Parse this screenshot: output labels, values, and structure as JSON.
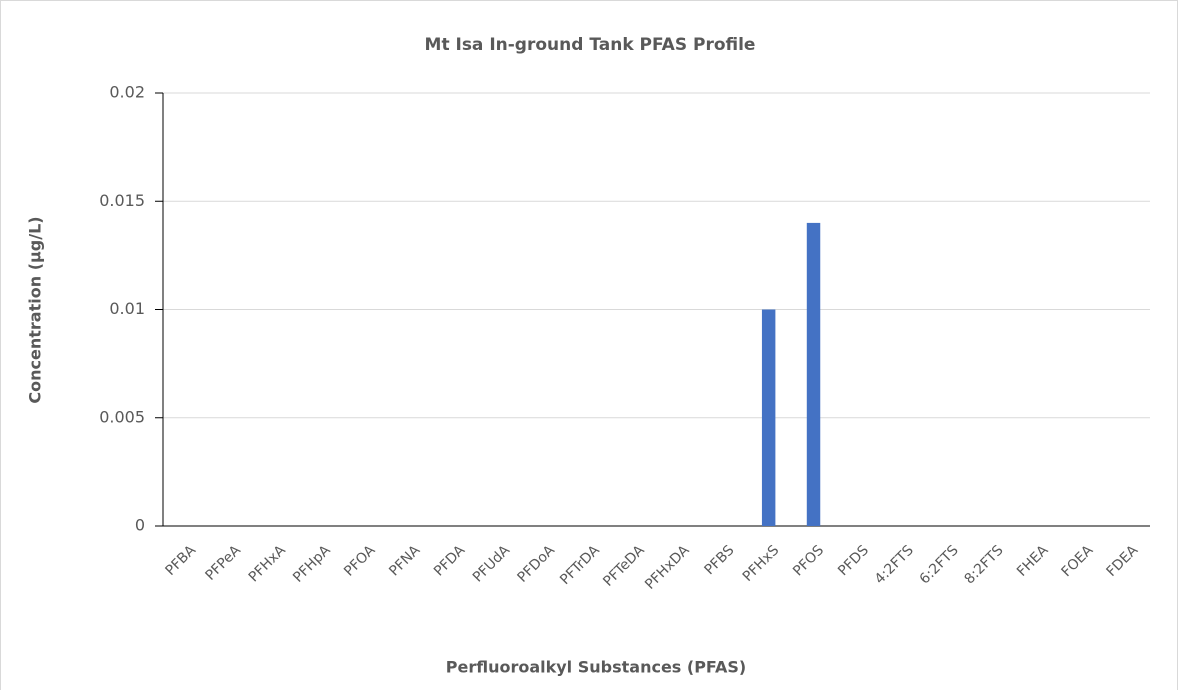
{
  "chart_data": {
    "type": "bar",
    "title": "Mt Isa In-ground Tank PFAS Profile",
    "x_label": "Perfluoroalkyl Substances (PFAS)",
    "y_label": "Concentration (µg/L)",
    "categories": [
      "PFBA",
      "PFPeA",
      "PFHxA",
      "PFHpA",
      "PFOA",
      "PFNA",
      "PFDA",
      "PFUdA",
      "PFDoA",
      "PFTrDA",
      "PFTeDA",
      "PFHxDA",
      "PFBS",
      "PFHxS",
      "PFOS",
      "PFDS",
      "4:2FTS",
      "6:2FTS",
      "8:2FTS",
      "FHEA",
      "FOEA",
      "FDEA"
    ],
    "values": [
      0,
      0,
      0,
      0,
      0,
      0,
      0,
      0,
      0,
      0,
      0,
      0,
      0,
      0.01,
      0.014,
      0,
      0,
      0,
      0,
      0,
      0,
      0
    ],
    "color": "#4472c4",
    "ylim": [
      0,
      0.02
    ],
    "yticks": [
      0,
      0.005,
      0.01,
      0.015,
      0.02
    ],
    "grid": true
  }
}
